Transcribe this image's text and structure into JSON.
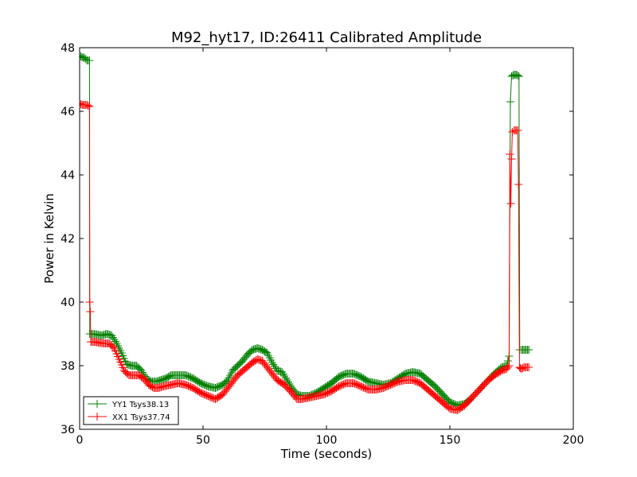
{
  "chart_data": {
    "type": "line",
    "title": "M92_hyt17, ID:26411 Calibrated Amplitude",
    "xlabel": "Time (seconds)",
    "ylabel": "Power in Kelvin",
    "xlim": [
      0,
      200
    ],
    "ylim": [
      36,
      48
    ],
    "xticks": [
      0,
      50,
      100,
      150,
      200
    ],
    "yticks": [
      36,
      38,
      40,
      42,
      44,
      46,
      48
    ],
    "grid": false,
    "legend_position": "bottom-left",
    "marker": "plus",
    "series": [
      {
        "name": "YY1 Tsys38.13",
        "color": "#008000",
        "points": [
          [
            0,
            47.75
          ],
          [
            1,
            47.7
          ],
          [
            2,
            47.68
          ],
          [
            3,
            47.6
          ],
          [
            4,
            47.6
          ],
          [
            4.1,
            39.0
          ],
          [
            5,
            39.0
          ],
          [
            7,
            38.98
          ],
          [
            9,
            38.95
          ],
          [
            11,
            39.0
          ],
          [
            13,
            38.95
          ],
          [
            15,
            38.7
          ],
          [
            17,
            38.4
          ],
          [
            19,
            38.05
          ],
          [
            21,
            38.0
          ],
          [
            23,
            38.0
          ],
          [
            25,
            37.85
          ],
          [
            27,
            37.6
          ],
          [
            29,
            37.5
          ],
          [
            31,
            37.5
          ],
          [
            33,
            37.55
          ],
          [
            35,
            37.6
          ],
          [
            37,
            37.7
          ],
          [
            40,
            37.7
          ],
          [
            43,
            37.7
          ],
          [
            46,
            37.6
          ],
          [
            49,
            37.45
          ],
          [
            52,
            37.35
          ],
          [
            55,
            37.3
          ],
          [
            58,
            37.4
          ],
          [
            60,
            37.55
          ],
          [
            62,
            37.85
          ],
          [
            64,
            38.0
          ],
          [
            66,
            38.15
          ],
          [
            68,
            38.35
          ],
          [
            70,
            38.5
          ],
          [
            72,
            38.55
          ],
          [
            74,
            38.5
          ],
          [
            76,
            38.4
          ],
          [
            78,
            38.1
          ],
          [
            80,
            37.85
          ],
          [
            82,
            37.8
          ],
          [
            84,
            37.55
          ],
          [
            86,
            37.3
          ],
          [
            88,
            37.1
          ],
          [
            90,
            37.05
          ],
          [
            93,
            37.05
          ],
          [
            96,
            37.15
          ],
          [
            99,
            37.3
          ],
          [
            102,
            37.45
          ],
          [
            105,
            37.65
          ],
          [
            108,
            37.75
          ],
          [
            111,
            37.75
          ],
          [
            114,
            37.65
          ],
          [
            117,
            37.5
          ],
          [
            120,
            37.45
          ],
          [
            123,
            37.4
          ],
          [
            126,
            37.45
          ],
          [
            129,
            37.6
          ],
          [
            132,
            37.75
          ],
          [
            135,
            37.8
          ],
          [
            138,
            37.75
          ],
          [
            141,
            37.55
          ],
          [
            144,
            37.35
          ],
          [
            147,
            37.1
          ],
          [
            150,
            36.85
          ],
          [
            153,
            36.75
          ],
          [
            156,
            36.8
          ],
          [
            159,
            37.0
          ],
          [
            162,
            37.25
          ],
          [
            165,
            37.5
          ],
          [
            168,
            37.75
          ],
          [
            171,
            37.95
          ],
          [
            173,
            38.0
          ],
          [
            174,
            38.3
          ],
          [
            174.5,
            46.3
          ],
          [
            175,
            47.1
          ],
          [
            176,
            47.15
          ],
          [
            177,
            47.15
          ],
          [
            178,
            47.1
          ],
          [
            178.3,
            38.5
          ],
          [
            179,
            38.5
          ],
          [
            180,
            38.5
          ],
          [
            181,
            38.5
          ],
          [
            182,
            38.5
          ]
        ]
      },
      {
        "name": "XX1 Tsys37.74",
        "color": "#ff0000",
        "points": [
          [
            0,
            46.25
          ],
          [
            1,
            46.2
          ],
          [
            2,
            46.2
          ],
          [
            3,
            46.2
          ],
          [
            4,
            46.15
          ],
          [
            4.1,
            40.0
          ],
          [
            4.3,
            39.7
          ],
          [
            4.5,
            38.75
          ],
          [
            6,
            38.75
          ],
          [
            8,
            38.72
          ],
          [
            10,
            38.7
          ],
          [
            12,
            38.7
          ],
          [
            14,
            38.55
          ],
          [
            16,
            38.2
          ],
          [
            18,
            37.85
          ],
          [
            20,
            37.7
          ],
          [
            22,
            37.7
          ],
          [
            24,
            37.7
          ],
          [
            26,
            37.6
          ],
          [
            28,
            37.4
          ],
          [
            30,
            37.3
          ],
          [
            32,
            37.3
          ],
          [
            34,
            37.35
          ],
          [
            37,
            37.4
          ],
          [
            40,
            37.45
          ],
          [
            43,
            37.4
          ],
          [
            46,
            37.3
          ],
          [
            49,
            37.15
          ],
          [
            52,
            37.05
          ],
          [
            55,
            36.95
          ],
          [
            58,
            37.1
          ],
          [
            61,
            37.4
          ],
          [
            64,
            37.7
          ],
          [
            67,
            37.9
          ],
          [
            70,
            38.1
          ],
          [
            72,
            38.2
          ],
          [
            74,
            38.15
          ],
          [
            76,
            37.95
          ],
          [
            78,
            37.75
          ],
          [
            80,
            37.55
          ],
          [
            83,
            37.4
          ],
          [
            86,
            37.15
          ],
          [
            88,
            36.95
          ],
          [
            90,
            36.95
          ],
          [
            93,
            37.0
          ],
          [
            96,
            37.05
          ],
          [
            99,
            37.1
          ],
          [
            102,
            37.2
          ],
          [
            105,
            37.35
          ],
          [
            108,
            37.45
          ],
          [
            111,
            37.45
          ],
          [
            114,
            37.35
          ],
          [
            117,
            37.25
          ],
          [
            120,
            37.25
          ],
          [
            123,
            37.3
          ],
          [
            126,
            37.4
          ],
          [
            129,
            37.5
          ],
          [
            132,
            37.55
          ],
          [
            135,
            37.55
          ],
          [
            138,
            37.45
          ],
          [
            141,
            37.25
          ],
          [
            144,
            37.05
          ],
          [
            147,
            36.85
          ],
          [
            150,
            36.65
          ],
          [
            153,
            36.6
          ],
          [
            156,
            36.75
          ],
          [
            159,
            37.0
          ],
          [
            162,
            37.25
          ],
          [
            165,
            37.5
          ],
          [
            168,
            37.7
          ],
          [
            171,
            37.85
          ],
          [
            173,
            37.9
          ],
          [
            174,
            38.0
          ],
          [
            174.3,
            44.65
          ],
          [
            174.7,
            43.1
          ],
          [
            175,
            44.5
          ],
          [
            175.3,
            45.35
          ],
          [
            176,
            45.4
          ],
          [
            177,
            45.4
          ],
          [
            177.5,
            45.4
          ],
          [
            177.8,
            43.7
          ],
          [
            178.2,
            37.95
          ],
          [
            179,
            37.9
          ],
          [
            180,
            37.95
          ],
          [
            181,
            37.95
          ],
          [
            182,
            37.95
          ]
        ]
      }
    ]
  }
}
